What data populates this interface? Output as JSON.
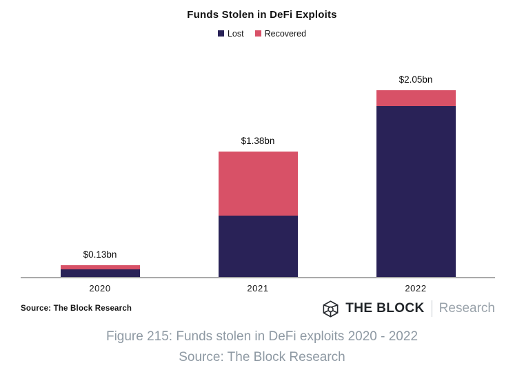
{
  "chart_data": {
    "type": "bar",
    "stacked": true,
    "title": "Funds Stolen in DeFi Exploits",
    "categories": [
      "2020",
      "2021",
      "2022"
    ],
    "series": [
      {
        "name": "Lost",
        "color": "#292257",
        "values": [
          0.08,
          0.67,
          1.88
        ]
      },
      {
        "name": "Recovered",
        "color": "#d85167",
        "values": [
          0.05,
          0.71,
          0.17
        ]
      }
    ],
    "totals": [
      0.13,
      1.38,
      2.05
    ],
    "total_labels": [
      "$0.13bn",
      "$1.38bn",
      "$2.05bn"
    ],
    "unit": "USD billions",
    "xlabel": "",
    "ylabel": "",
    "ylim": [
      0,
      2.2
    ],
    "grid": false,
    "legend_position": "top",
    "axis_color": "#a9a9a9"
  },
  "footer": {
    "source": "Source: The Block Research",
    "logo": {
      "icon": "block-cube-icon",
      "brand": "THE BLOCK",
      "suffix": "Research"
    }
  },
  "caption": {
    "line1": "Figure 215: Funds stolen in DeFi exploits 2020 - 2022",
    "line2": "Source: The Block Research",
    "color": "#8e99a3"
  }
}
